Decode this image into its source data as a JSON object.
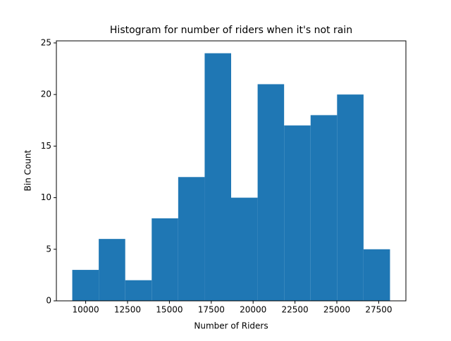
{
  "chart_data": {
    "type": "histogram",
    "title": "Histogram for number of riders when it's not rain",
    "x_label": "Number of Riders",
    "y_label": "Bin Count",
    "bins": [
      9199,
      10780,
      12362,
      13943,
      15525,
      17106,
      18687,
      20269,
      21850,
      23432,
      25013,
      26594,
      28175
    ],
    "values": [
      3,
      6,
      2,
      8,
      12,
      24,
      10,
      21,
      17,
      18,
      20,
      5
    ],
    "color": "#1f77b4",
    "xlim": [
      8250,
      29124
    ],
    "xticks": [
      10000,
      12500,
      15000,
      17500,
      20000,
      22500,
      25000,
      27500
    ],
    "ylim": [
      0,
      25.2
    ],
    "yticks": [
      0,
      5,
      10,
      15,
      20,
      25
    ],
    "grid": false
  }
}
